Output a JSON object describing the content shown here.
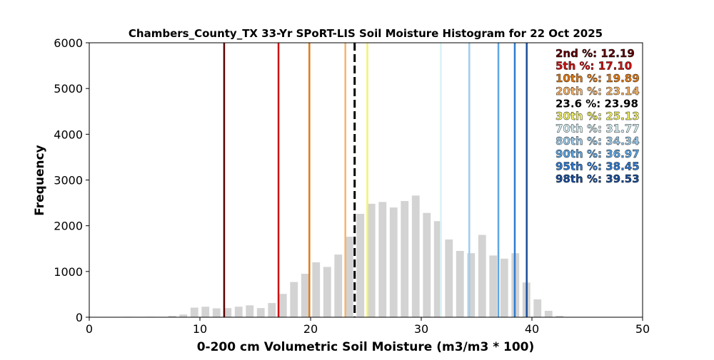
{
  "chart_data": {
    "type": "bar",
    "title": "Chambers_County_TX 33-Yr SPoRT-LIS Soil Moisture Histogram for 22 Oct 2025",
    "xlabel": "0-200 cm Volumetric Soil Moisture (m3/m3 * 100)",
    "ylabel": "Frequency",
    "xlim": [
      0,
      50
    ],
    "ylim": [
      0,
      6000
    ],
    "xticks": [
      "0",
      "10",
      "20",
      "30",
      "40",
      "50"
    ],
    "yticks": [
      "0",
      "1000",
      "2000",
      "3000",
      "4000",
      "5000",
      "6000"
    ],
    "grid": false,
    "bar_color": "#d3d3d3",
    "bin_width": 1,
    "bar_fill_fraction": 0.7,
    "bins": [
      {
        "x": 3.5,
        "count": 10
      },
      {
        "x": 5.5,
        "count": 10
      },
      {
        "x": 7.5,
        "count": 30
      },
      {
        "x": 8.5,
        "count": 60
      },
      {
        "x": 9.5,
        "count": 210
      },
      {
        "x": 10.5,
        "count": 230
      },
      {
        "x": 11.5,
        "count": 195
      },
      {
        "x": 12.5,
        "count": 200
      },
      {
        "x": 13.5,
        "count": 230
      },
      {
        "x": 14.5,
        "count": 260
      },
      {
        "x": 15.5,
        "count": 200
      },
      {
        "x": 16.5,
        "count": 310
      },
      {
        "x": 17.5,
        "count": 510
      },
      {
        "x": 18.5,
        "count": 770
      },
      {
        "x": 19.5,
        "count": 950
      },
      {
        "x": 20.5,
        "count": 1200
      },
      {
        "x": 21.5,
        "count": 1100
      },
      {
        "x": 22.5,
        "count": 1370
      },
      {
        "x": 23.5,
        "count": 1760
      },
      {
        "x": 24.5,
        "count": 2260
      },
      {
        "x": 25.5,
        "count": 2480
      },
      {
        "x": 26.5,
        "count": 2520
      },
      {
        "x": 27.5,
        "count": 2400
      },
      {
        "x": 28.5,
        "count": 2540
      },
      {
        "x": 29.5,
        "count": 2660
      },
      {
        "x": 30.5,
        "count": 2280
      },
      {
        "x": 31.5,
        "count": 2100
      },
      {
        "x": 32.5,
        "count": 1700
      },
      {
        "x": 33.5,
        "count": 1450
      },
      {
        "x": 34.5,
        "count": 1400
      },
      {
        "x": 35.5,
        "count": 1800
      },
      {
        "x": 36.5,
        "count": 1350
      },
      {
        "x": 37.5,
        "count": 1280
      },
      {
        "x": 38.5,
        "count": 1400
      },
      {
        "x": 39.5,
        "count": 760
      },
      {
        "x": 40.5,
        "count": 390
      },
      {
        "x": 41.5,
        "count": 140
      },
      {
        "x": 42.5,
        "count": 30
      },
      {
        "x": 43.5,
        "count": 5
      }
    ],
    "percentile_lines": [
      {
        "label": "2nd %: 12.19",
        "value": 12.19,
        "color": "#5c0000",
        "dashed": false
      },
      {
        "label": "5th %: 17.10",
        "value": 17.1,
        "color": "#cc1111",
        "dashed": false
      },
      {
        "label": "10th %: 19.89",
        "value": 19.89,
        "color": "#e07b17",
        "dashed": false
      },
      {
        "label": "20th %: 23.14",
        "value": 23.14,
        "color": "#f5b46b",
        "dashed": false
      },
      {
        "label": "23.6 %: 23.98",
        "value": 23.98,
        "color": "#000000",
        "dashed": true
      },
      {
        "label": "30th %: 25.13",
        "value": 25.13,
        "color": "#f4f46a",
        "dashed": false
      },
      {
        "label": "70th %: 31.77",
        "value": 31.77,
        "color": "#d8f2f8",
        "dashed": false
      },
      {
        "label": "80th %: 34.34",
        "value": 34.34,
        "color": "#9fcdeb",
        "dashed": false
      },
      {
        "label": "90th %: 36.97",
        "value": 36.97,
        "color": "#5ea6e3",
        "dashed": false
      },
      {
        "label": "95th %: 38.45",
        "value": 38.45,
        "color": "#2e7bd1",
        "dashed": false
      },
      {
        "label": "98th %: 39.53",
        "value": 39.53,
        "color": "#1b4f9b",
        "dashed": false
      }
    ],
    "legend_placement": "top-right"
  }
}
